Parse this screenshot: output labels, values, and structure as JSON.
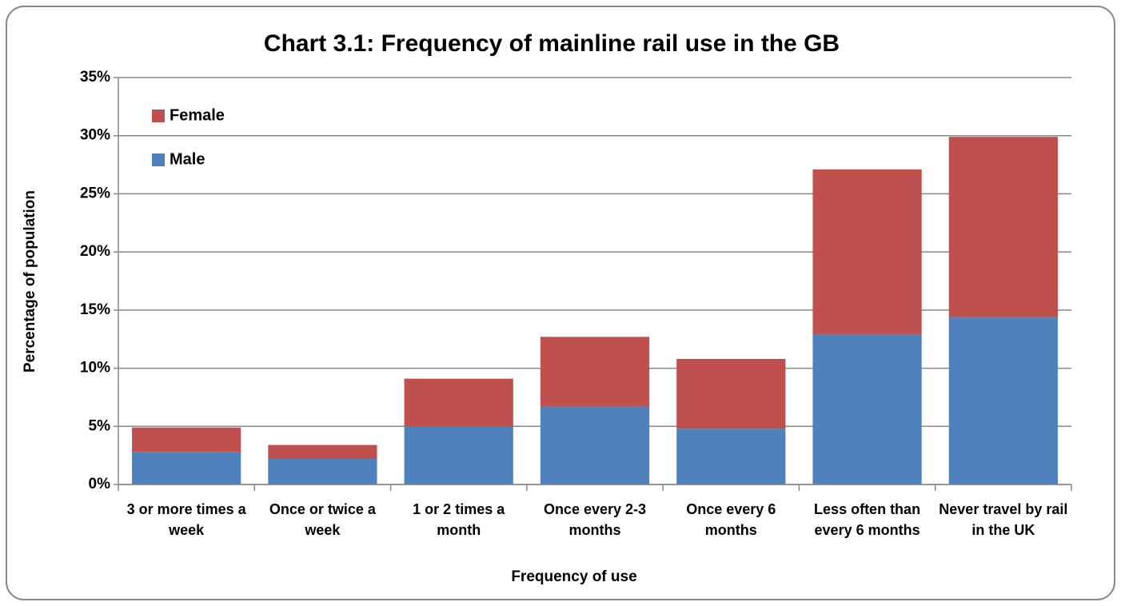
{
  "chart_data": {
    "type": "stacked_bar",
    "title": "Chart 3.1: Frequency of mainline rail use in the GB",
    "x_label": "Frequency of use",
    "y_label": "Percentage of population",
    "categories": [
      "3 or more times a week",
      "Once or twice a week",
      "1 or 2 times a month",
      "Once every 2-3 months",
      "Once every 6 months",
      "Less often than every 6 months",
      "Never travel by rail in the UK"
    ],
    "series": [
      {
        "name": "Male",
        "color": "#4f81bd",
        "values": [
          2.8,
          2.2,
          5.0,
          6.7,
          4.8,
          12.9,
          14.4
        ]
      },
      {
        "name": "Female",
        "color": "#c0504d",
        "values": [
          2.1,
          1.2,
          4.1,
          6.0,
          6.0,
          14.2,
          15.5
        ]
      }
    ],
    "ylim": [
      0,
      35
    ],
    "yticks": [
      {
        "value": 0,
        "label": "0%"
      },
      {
        "value": 5,
        "label": "5%"
      },
      {
        "value": 10,
        "label": "10%"
      },
      {
        "value": 15,
        "label": "15%"
      },
      {
        "value": 20,
        "label": "20%"
      },
      {
        "value": 25,
        "label": "25%"
      },
      {
        "value": 30,
        "label": "30%"
      },
      {
        "value": 35,
        "label": "35%"
      }
    ],
    "grid": true,
    "legend": "upper-left"
  }
}
